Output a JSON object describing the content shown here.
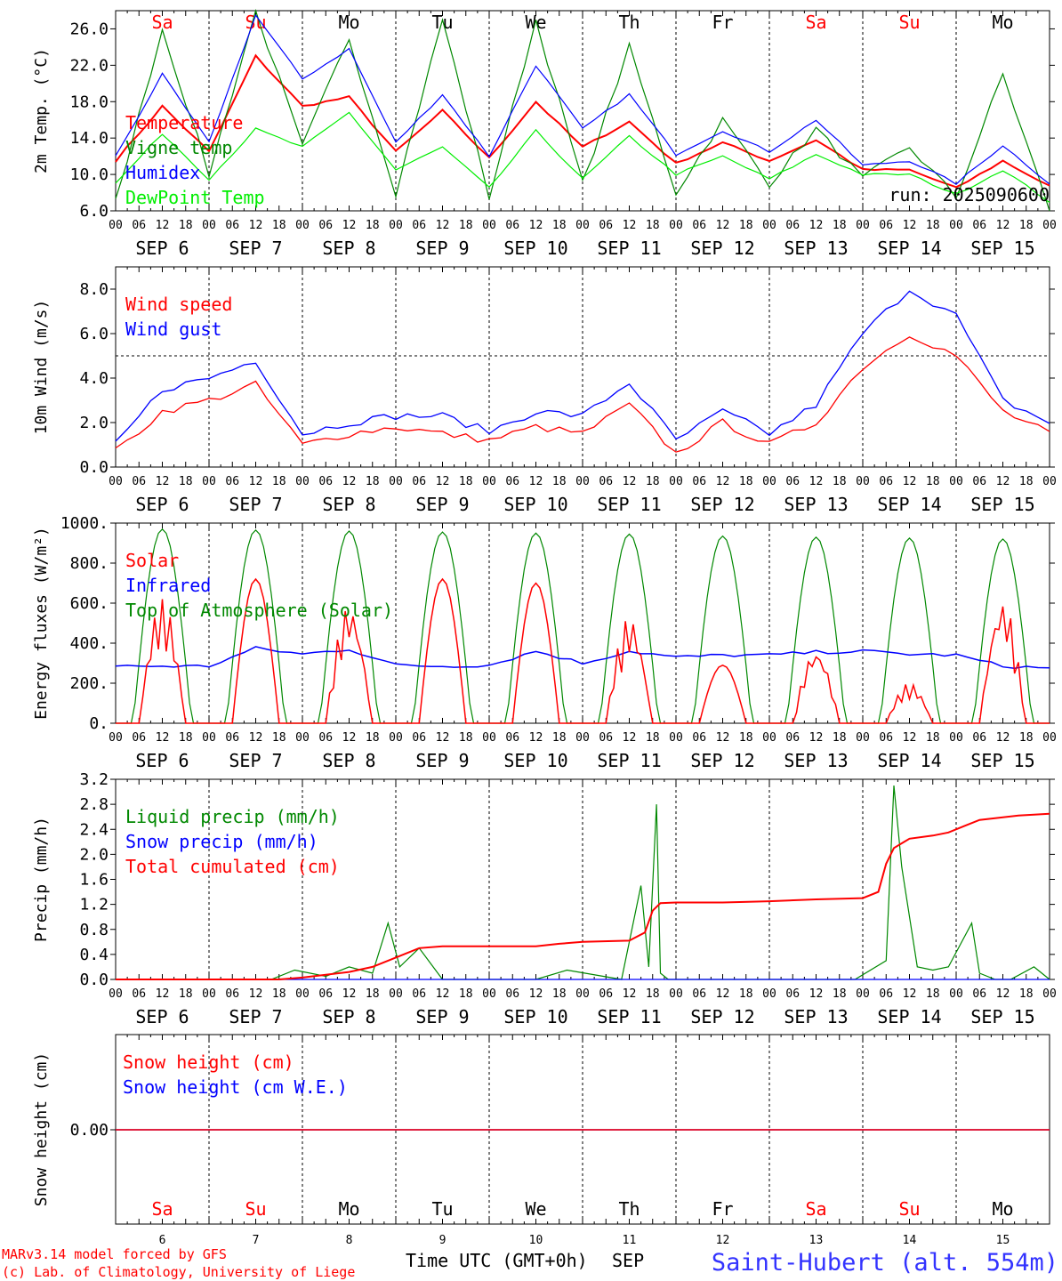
{
  "colors": {
    "red": "#ff0000",
    "green": "#008800",
    "lime": "#00ee00",
    "blue": "#0000ff",
    "axis": "#000000",
    "station": "#3333ff"
  },
  "run_label": "run: 2025090600",
  "hour_labels": [
    "00",
    "06",
    "12",
    "18"
  ],
  "date_labels": [
    "SEP  6",
    "SEP  7",
    "SEP  8",
    "SEP  9",
    "SEP 10",
    "SEP 11",
    "SEP 12",
    "SEP 13",
    "SEP 14",
    "SEP 15"
  ],
  "weekdays": [
    {
      "label": "Sa",
      "weekend": true
    },
    {
      "label": "Su",
      "weekend": true
    },
    {
      "label": "Mo",
      "weekend": false
    },
    {
      "label": "Tu",
      "weekend": false
    },
    {
      "label": "We",
      "weekend": false
    },
    {
      "label": "Th",
      "weekend": false
    },
    {
      "label": "Fr",
      "weekend": false
    },
    {
      "label": "Sa",
      "weekend": true
    },
    {
      "label": "Su",
      "weekend": true
    },
    {
      "label": "Mo",
      "weekend": false
    }
  ],
  "day_numbers": [
    "6",
    "7",
    "8",
    "9",
    "10",
    "11",
    "12",
    "13",
    "14",
    "15"
  ],
  "footer": {
    "credit_line1": "MARv3.14 model forced by GFS",
    "credit_line2": "(c) Lab. of Climatology, University of Liege",
    "time_axis_label": "Time UTC (GMT+0h)",
    "month_label": "SEP",
    "station": "Saint-Hubert (alt. 554m)"
  },
  "chart_data": [
    {
      "type": "line",
      "ylabel": "2m Temp. (°C)",
      "ylim": [
        6,
        28
      ],
      "yticks": [
        "6.0",
        "10.0",
        "14.0",
        "18.0",
        "22.0",
        "26.0"
      ],
      "x_hours": [
        0,
        12,
        24,
        36,
        48,
        60,
        72,
        84,
        96,
        108,
        120,
        132,
        144,
        156,
        168,
        180,
        192,
        204,
        216,
        228,
        240
      ],
      "series": [
        {
          "name": "Temperature",
          "color": "red",
          "values": [
            11.5,
            17.5,
            12.5,
            23,
            17.5,
            18.5,
            12.5,
            17,
            11.8,
            18,
            13,
            15.8,
            11.2,
            13.5,
            11.5,
            13.8,
            10.5,
            10.5,
            8.5,
            11.5,
            8.7
          ]
        },
        {
          "name": "Vigne temp",
          "color": "green",
          "values": [
            7,
            26,
            10,
            28,
            13,
            25,
            8,
            27,
            7.5,
            27,
            9,
            24,
            8,
            16,
            9,
            15,
            9.5,
            13,
            7.5,
            21,
            6
          ]
        },
        {
          "name": "Humidex",
          "color": "blue",
          "values": [
            12,
            21,
            13.5,
            27.5,
            20.5,
            23.8,
            13.5,
            18.8,
            12,
            22,
            15,
            18.8,
            12.2,
            14.8,
            12.5,
            16,
            11,
            11.5,
            9,
            13.2,
            9
          ]
        },
        {
          "name": "DewPoint Temp",
          "color": "lime",
          "values": [
            9,
            14.5,
            9.5,
            15,
            13,
            16.8,
            10.5,
            13,
            8.5,
            14.8,
            9.5,
            14.2,
            10,
            12,
            9.5,
            12.2,
            10,
            10,
            7.8,
            10.5,
            7
          ]
        }
      ]
    },
    {
      "type": "line",
      "ylabel": "10m Wind (m/s)",
      "ylim": [
        0,
        9
      ],
      "yticks": [
        "0.0",
        "2.0",
        "4.0",
        "6.0",
        "8.0"
      ],
      "reference_line": 5,
      "x_hours": [
        0,
        12,
        24,
        36,
        48,
        60,
        72,
        84,
        96,
        108,
        120,
        132,
        144,
        156,
        168,
        180,
        192,
        204,
        216,
        228,
        240
      ],
      "series": [
        {
          "name": "Wind speed",
          "color": "red",
          "values": [
            0.7,
            2.5,
            3,
            3.7,
            1,
            1.5,
            1.8,
            1.5,
            1.2,
            1.8,
            1.5,
            2.8,
            0.6,
            2,
            1,
            2,
            4.5,
            6,
            5,
            2.5,
            1.5
          ]
        },
        {
          "name": "Wind gust",
          "color": "blue",
          "values": [
            1,
            3.5,
            4,
            4.8,
            1.5,
            2,
            2.3,
            2.3,
            1.6,
            2.5,
            2.3,
            3.8,
            1.2,
            2.5,
            1.5,
            2.8,
            6,
            8,
            6.8,
            3,
            2
          ]
        }
      ]
    },
    {
      "type": "line",
      "ylabel": "Energy fluxes (W/m²)",
      "ylim": [
        0,
        1000
      ],
      "yticks": [
        "0.",
        "200.",
        "400.",
        "600.",
        "800.",
        "1000."
      ],
      "series": [
        {
          "name": "Solar",
          "color": "red",
          "peaks": [
            620,
            720,
            590,
            720,
            700,
            530,
            290,
            370,
            200,
            610
          ]
        },
        {
          "name": "Infrared",
          "color": "blue",
          "x_hours": [
            0,
            24,
            36,
            48,
            60,
            72,
            84,
            96,
            108,
            120,
            132,
            144,
            156,
            168,
            180,
            192,
            204,
            216,
            228,
            240
          ],
          "values": [
            285,
            285,
            375,
            345,
            370,
            290,
            285,
            290,
            360,
            300,
            360,
            330,
            340,
            340,
            355,
            360,
            345,
            340,
            285,
            275
          ]
        },
        {
          "name": "Top of Atmosphere (Solar)",
          "color": "green",
          "peaks": [
            970,
            965,
            960,
            955,
            950,
            945,
            935,
            930,
            925,
            920
          ]
        }
      ]
    },
    {
      "type": "line",
      "ylabel": "Precip (mm/h)",
      "ylim": [
        0,
        3.2
      ],
      "yticks": [
        "0.0",
        "0.4",
        "0.8",
        "1.2",
        "1.6",
        "2.0",
        "2.4",
        "2.8",
        "3.2"
      ],
      "series": [
        {
          "name": "Liquid precip (mm/h)",
          "color": "green",
          "x_hours": [
            0,
            40,
            46,
            54,
            60,
            66,
            70,
            73,
            78,
            84,
            108,
            116,
            130,
            135,
            137,
            139,
            140,
            142,
            150,
            170,
            190,
            198,
            200,
            202,
            206,
            210,
            214,
            220,
            222,
            226,
            230,
            236,
            240
          ],
          "values": [
            0,
            0,
            0.15,
            0.05,
            0.2,
            0.1,
            0.9,
            0.2,
            0.5,
            0,
            0,
            0.15,
            0,
            1.5,
            0.2,
            2.8,
            0.1,
            0,
            0,
            0,
            0,
            0.3,
            3.1,
            1.8,
            0.2,
            0.15,
            0.2,
            0.9,
            0.1,
            0,
            0,
            0.2,
            0
          ]
        },
        {
          "name": "Snow precip (mm/h)",
          "color": "blue",
          "x_hours": [
            0,
            240
          ],
          "values": [
            0,
            0
          ]
        },
        {
          "name": "Total cumulated (cm)",
          "color": "red",
          "x_hours": [
            0,
            42,
            48,
            60,
            66,
            72,
            78,
            84,
            96,
            108,
            114,
            120,
            132,
            136,
            138,
            140,
            144,
            156,
            168,
            180,
            192,
            196,
            198,
            200,
            204,
            210,
            214,
            218,
            222,
            232,
            240
          ],
          "values": [
            0,
            0,
            0.03,
            0.12,
            0.2,
            0.35,
            0.5,
            0.53,
            0.53,
            0.53,
            0.57,
            0.6,
            0.62,
            0.75,
            1.1,
            1.22,
            1.23,
            1.23,
            1.25,
            1.28,
            1.3,
            1.4,
            1.85,
            2.1,
            2.25,
            2.3,
            2.35,
            2.45,
            2.55,
            2.62,
            2.65
          ]
        }
      ]
    },
    {
      "type": "line",
      "ylabel": "Snow height (cm)",
      "yticks": [
        "0.00"
      ],
      "series": [
        {
          "name": "Snow height (cm)",
          "color": "red",
          "values": [
            0,
            0
          ]
        },
        {
          "name": "Snow height (cm W.E.)",
          "color": "blue",
          "values": [
            0,
            0
          ]
        }
      ]
    }
  ]
}
